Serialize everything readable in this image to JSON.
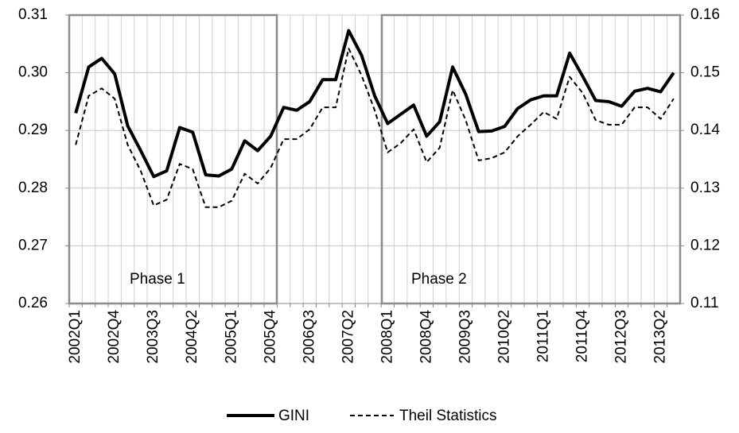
{
  "chart_data": {
    "type": "line",
    "categories": [
      "2002Q1",
      null,
      null,
      "2002Q4",
      null,
      null,
      "2003Q3",
      null,
      null,
      "2004Q2",
      null,
      null,
      "2005Q1",
      null,
      null,
      "2005Q4",
      null,
      null,
      "2006Q3",
      null,
      null,
      "2007Q2",
      null,
      null,
      "2008Q1",
      null,
      null,
      "2008Q4",
      null,
      null,
      "2009Q3",
      null,
      null,
      "2010Q2",
      null,
      null,
      "2011Q1",
      null,
      null,
      "2011Q4",
      null,
      null,
      "2012Q3",
      null,
      null,
      "2013Q2",
      null
    ],
    "series": [
      {
        "name": "GINI",
        "color": "#000000",
        "dash": "solid",
        "axis": "y",
        "values": [
          0.293,
          0.301,
          0.3025,
          0.2998,
          0.2908,
          0.2865,
          0.282,
          0.283,
          0.2905,
          0.2897,
          0.2823,
          0.2821,
          0.2833,
          0.2882,
          0.2865,
          0.289,
          0.294,
          0.2935,
          0.295,
          0.2988,
          0.2988,
          0.3073,
          0.303,
          0.296,
          0.2912,
          0.2928,
          0.2944,
          0.289,
          0.2915,
          0.301,
          0.2963,
          0.2898,
          0.2899,
          0.2907,
          0.2938,
          0.2953,
          0.296,
          0.296,
          0.3034,
          0.2994,
          0.2952,
          0.295,
          0.2942,
          0.2968,
          0.2973,
          0.2967,
          0.3
        ]
      },
      {
        "name": "Theil Statistics",
        "color": "#000000",
        "dash": "dashed",
        "axis": "y2",
        "values": [
          0.1375,
          0.146,
          0.1473,
          0.1455,
          0.1375,
          0.133,
          0.127,
          0.128,
          0.1342,
          0.1333,
          0.1267,
          0.1267,
          0.1278,
          0.1325,
          0.1308,
          0.1335,
          0.1385,
          0.1385,
          0.1402,
          0.144,
          0.144,
          0.1542,
          0.1495,
          0.1435,
          0.1362,
          0.1378,
          0.1402,
          0.1345,
          0.137,
          0.147,
          0.1418,
          0.1348,
          0.1352,
          0.1362,
          0.139,
          0.141,
          0.1432,
          0.142,
          0.1493,
          0.1465,
          0.1418,
          0.141,
          0.141,
          0.144,
          0.144,
          0.142,
          0.1455
        ]
      }
    ],
    "ylim": [
      0.26,
      0.31
    ],
    "yticks": [
      0.26,
      0.27,
      0.28,
      0.29,
      {
        "value": 0.3,
        "label": "0.30"
      },
      0.31
    ],
    "y2lim": [
      0.11,
      0.16
    ],
    "y2ticks": [
      0.11,
      0.12,
      0.13,
      0.14,
      0.15,
      0.16
    ],
    "grid": true,
    "legend": "bottom",
    "annotations": [
      {
        "label": "Phase 1"
      },
      {
        "label": "Phase 2"
      }
    ]
  }
}
